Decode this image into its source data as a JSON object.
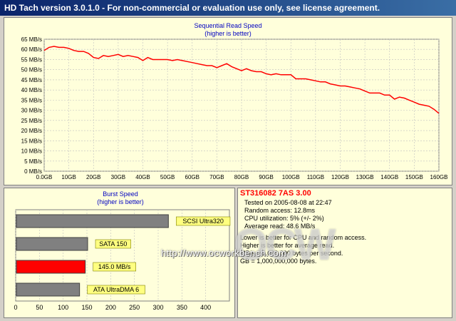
{
  "window": {
    "title": "HD Tach version 3.0.1.0  - For non-commercial or evaluation use only, see license agreement."
  },
  "colors": {
    "title_bar": "#0a246a",
    "panel_background": "#ffffdb",
    "read_line": "#ff0000",
    "highlight_bar": "#ff0000",
    "reference_bar": "#808080",
    "label_background": "#ffff80",
    "chart_title": "#0000c0",
    "drive_model": "#ff0000"
  },
  "read_chart": {
    "chart_data": {
      "type": "line",
      "title": "Sequential Read Speed",
      "subtitle": "(higher is better)",
      "x_unit_labels": [
        "0.0GB",
        "10GB",
        "20GB",
        "30GB",
        "40GB",
        "50GB",
        "60GB",
        "70GB",
        "80GB",
        "90GB",
        "100GB",
        "110GB",
        "120GB",
        "130GB",
        "140GB",
        "150GB",
        "160GB"
      ],
      "y_unit_labels": [
        "0 MB/s",
        "5 MB/s",
        "10 MB/s",
        "15 MB/s",
        "20 MB/s",
        "25 MB/s",
        "30 MB/s",
        "35 MB/s",
        "40 MB/s",
        "45 MB/s",
        "50 MB/s",
        "55 MB/s",
        "60 MB/s",
        "65 MB/s"
      ],
      "xlim": [
        0,
        160
      ],
      "ylim": [
        0,
        65
      ],
      "grid": true,
      "series": [
        {
          "x": [
            0,
            2,
            4,
            6,
            8,
            10,
            12,
            14,
            16,
            18,
            20,
            22,
            24,
            26,
            28,
            30,
            32,
            34,
            36,
            38,
            40,
            42,
            44,
            46,
            48,
            50,
            52,
            54,
            56,
            58,
            60,
            62,
            64,
            66,
            68,
            70,
            72,
            74,
            76,
            78,
            80,
            82,
            84,
            86,
            88,
            90,
            92,
            94,
            96,
            98,
            100,
            102,
            104,
            106,
            108,
            110,
            112,
            114,
            116,
            118,
            120,
            122,
            124,
            126,
            128,
            130,
            132,
            134,
            136,
            138,
            140,
            142,
            144,
            146,
            148,
            150,
            152,
            154,
            156,
            158,
            160
          ],
          "values": [
            59.5,
            61,
            61.5,
            61,
            61,
            60.5,
            59.5,
            59,
            59,
            58,
            56,
            55.5,
            57,
            56.5,
            57,
            57.5,
            56.5,
            57,
            56.5,
            56,
            54.5,
            56,
            55,
            55,
            55,
            55,
            54.5,
            55,
            54.5,
            54,
            53.5,
            53,
            52.5,
            52,
            52,
            51,
            52,
            53,
            51.5,
            50.5,
            49.5,
            50.5,
            49.5,
            49,
            49,
            48,
            47.5,
            48,
            47.5,
            47.5,
            47.5,
            45.5,
            45.5,
            45.5,
            45,
            44.5,
            44,
            44,
            43,
            42.5,
            42,
            42,
            41.5,
            41,
            40.5,
            39.5,
            38.5,
            38.5,
            38.5,
            37.5,
            37.5,
            35.5,
            36.5,
            36,
            35,
            34,
            33,
            32.5,
            32,
            30.5,
            28.5
          ]
        }
      ]
    }
  },
  "burst_chart": {
    "chart_data": {
      "type": "bar",
      "title": "Burst Speed",
      "subtitle": "(higher is better)",
      "categories": [
        "SCSI Ultra320",
        "SATA 150",
        "145.0 MB/s",
        "ATA UltraDMA 6"
      ],
      "values": [
        320,
        150,
        145,
        133
      ],
      "highlight_index": 2,
      "xlim": [
        0,
        450
      ],
      "x_unit_labels": [
        "0",
        "50",
        "100",
        "150",
        "200",
        "250",
        "300",
        "350",
        "400"
      ],
      "grid": true
    }
  },
  "results": {
    "drive_model": "ST316082 7AS 3.00",
    "lines": [
      "Tested on 2005-08-08 at 22:47",
      "Random access: 12.8ms",
      "CPU utilization: 5% (+/- 2%)",
      "Average read: 48.6 MB/s"
    ],
    "notes": [
      "Lower is better for CPU and random access.",
      "Higher is better for average read.",
      "MB/s = 1,000,000 bytes per second.",
      "GB = 1,000,000,000 bytes."
    ]
  },
  "watermark": {
    "url": "http://www.ocworkbench.com",
    "logo": "OCW"
  }
}
